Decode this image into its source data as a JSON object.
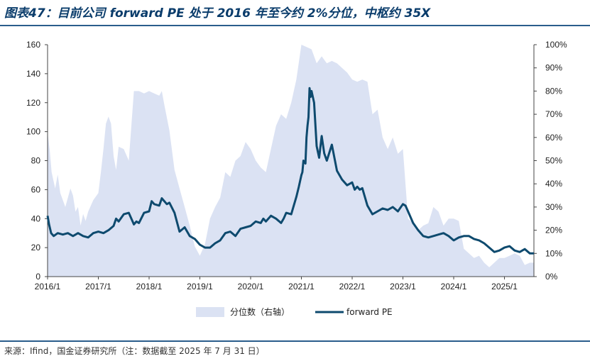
{
  "title": "图表47：目前公司 forward PE 处于 2016 年至今约 2%分位，中枢约 35X",
  "source": "来源：Ifind，国金证券研究所（注：数据截至 2025 年 7 月 31 日）",
  "colors": {
    "area": "#dbe2f3",
    "line": "#0e4a6e",
    "title": "#0a3c6b",
    "rule": "#2a5d8c"
  },
  "chart_data": {
    "type": "line",
    "x_ticks": [
      "2016/1",
      "2017/1",
      "2018/1",
      "2019/1",
      "2020/1",
      "2021/1",
      "2022/1",
      "2023/1",
      "2024/1",
      "2025/1"
    ],
    "y_left_ticks": [
      "0",
      "20",
      "40",
      "60",
      "80",
      "100",
      "120",
      "140",
      "160"
    ],
    "y_right_ticks": [
      "0%",
      "10%",
      "20%",
      "30%",
      "40%",
      "50%",
      "60%",
      "70%",
      "80%",
      "90%",
      "100%"
    ],
    "ylim_left": [
      0,
      160
    ],
    "ylim_right": [
      0,
      1
    ],
    "xlim": [
      2016.0,
      2025.58
    ],
    "grid": false,
    "legend_position": "bottom",
    "series": [
      {
        "name": "分位数（右轴）",
        "type": "area",
        "axis": "right",
        "x": [
          2016.0,
          2016.04,
          2016.08,
          2016.15,
          2016.2,
          2016.25,
          2016.3,
          2016.35,
          2016.4,
          2016.45,
          2016.5,
          2016.55,
          2016.6,
          2016.65,
          2016.7,
          2016.75,
          2016.8,
          2016.9,
          2017.0,
          2017.05,
          2017.1,
          2017.15,
          2017.2,
          2017.25,
          2017.3,
          2017.35,
          2017.4,
          2017.5,
          2017.6,
          2017.7,
          2017.8,
          2017.9,
          2018.0,
          2018.1,
          2018.2,
          2018.25,
          2018.3,
          2018.4,
          2018.5,
          2018.6,
          2018.7,
          2018.8,
          2018.9,
          2019.0,
          2019.1,
          2019.2,
          2019.3,
          2019.4,
          2019.5,
          2019.6,
          2019.7,
          2019.8,
          2019.9,
          2020.0,
          2020.1,
          2020.2,
          2020.3,
          2020.4,
          2020.5,
          2020.6,
          2020.7,
          2020.8,
          2020.9,
          2021.0,
          2021.1,
          2021.2,
          2021.3,
          2021.4,
          2021.5,
          2021.6,
          2021.7,
          2021.8,
          2021.9,
          2022.0,
          2022.1,
          2022.2,
          2022.3,
          2022.4,
          2022.5,
          2022.6,
          2022.7,
          2022.8,
          2022.9,
          2023.0,
          2023.1,
          2023.2,
          2023.3,
          2023.4,
          2023.5,
          2023.6,
          2023.7,
          2023.8,
          2023.9,
          2024.0,
          2024.1,
          2024.2,
          2024.3,
          2024.4,
          2024.5,
          2024.6,
          2024.7,
          2024.8,
          2024.9,
          2025.0,
          2025.1,
          2025.2,
          2025.3,
          2025.4,
          2025.5,
          2025.58
        ],
        "values": [
          0.62,
          0.55,
          0.45,
          0.38,
          0.44,
          0.36,
          0.33,
          0.3,
          0.34,
          0.38,
          0.35,
          0.28,
          0.3,
          0.22,
          0.27,
          0.24,
          0.28,
          0.33,
          0.36,
          0.45,
          0.55,
          0.66,
          0.69,
          0.66,
          0.52,
          0.46,
          0.56,
          0.55,
          0.5,
          0.8,
          0.8,
          0.79,
          0.8,
          0.79,
          0.78,
          0.8,
          0.74,
          0.63,
          0.46,
          0.38,
          0.3,
          0.22,
          0.13,
          0.09,
          0.14,
          0.25,
          0.3,
          0.34,
          0.45,
          0.43,
          0.5,
          0.52,
          0.58,
          0.55,
          0.5,
          0.47,
          0.45,
          0.55,
          0.65,
          0.7,
          0.68,
          0.75,
          0.85,
          1.0,
          0.99,
          0.98,
          0.92,
          0.95,
          0.92,
          0.93,
          0.92,
          0.9,
          0.88,
          0.85,
          0.84,
          0.85,
          0.84,
          0.7,
          0.72,
          0.6,
          0.55,
          0.6,
          0.53,
          0.55,
          0.25,
          0.23,
          0.2,
          0.22,
          0.23,
          0.3,
          0.28,
          0.22,
          0.25,
          0.25,
          0.24,
          0.12,
          0.1,
          0.08,
          0.09,
          0.06,
          0.04,
          0.06,
          0.08,
          0.08,
          0.09,
          0.1,
          0.09,
          0.05,
          0.06,
          0.06
        ]
      },
      {
        "name": "forward PE",
        "type": "line",
        "axis": "left",
        "x": [
          2016.0,
          2016.03,
          2016.07,
          2016.12,
          2016.2,
          2016.3,
          2016.4,
          2016.5,
          2016.6,
          2016.7,
          2016.8,
          2016.9,
          2017.0,
          2017.1,
          2017.2,
          2017.3,
          2017.35,
          2017.4,
          2017.5,
          2017.6,
          2017.7,
          2017.75,
          2017.8,
          2017.9,
          2018.0,
          2018.05,
          2018.1,
          2018.2,
          2018.25,
          2018.3,
          2018.35,
          2018.4,
          2018.5,
          2018.6,
          2018.7,
          2018.8,
          2018.9,
          2019.0,
          2019.1,
          2019.2,
          2019.3,
          2019.4,
          2019.5,
          2019.6,
          2019.7,
          2019.8,
          2019.9,
          2020.0,
          2020.1,
          2020.2,
          2020.25,
          2020.3,
          2020.4,
          2020.5,
          2020.6,
          2020.65,
          2020.7,
          2020.8,
          2020.9,
          2020.95,
          2021.0,
          2021.02,
          2021.04,
          2021.06,
          2021.08,
          2021.1,
          2021.12,
          2021.14,
          2021.16,
          2021.18,
          2021.2,
          2021.25,
          2021.3,
          2021.35,
          2021.4,
          2021.45,
          2021.5,
          2021.6,
          2021.7,
          2021.8,
          2021.9,
          2022.0,
          2022.05,
          2022.1,
          2022.15,
          2022.2,
          2022.3,
          2022.4,
          2022.5,
          2022.6,
          2022.7,
          2022.8,
          2022.9,
          2023.0,
          2023.05,
          2023.1,
          2023.2,
          2023.3,
          2023.4,
          2023.5,
          2023.6,
          2023.7,
          2023.8,
          2023.9,
          2024.0,
          2024.1,
          2024.2,
          2024.3,
          2024.4,
          2024.5,
          2024.6,
          2024.7,
          2024.8,
          2024.9,
          2025.0,
          2025.1,
          2025.2,
          2025.3,
          2025.4,
          2025.5,
          2025.58
        ],
        "values": [
          42,
          36,
          30,
          28,
          30,
          29,
          30,
          28,
          30,
          28,
          27,
          30,
          31,
          30,
          32,
          35,
          40,
          38,
          43,
          44,
          36,
          38,
          37,
          44,
          45,
          52,
          50,
          49,
          54,
          52,
          50,
          51,
          44,
          31,
          34,
          28,
          26,
          22,
          20,
          20,
          23,
          25,
          30,
          31,
          28,
          33,
          34,
          35,
          38,
          37,
          40,
          38,
          42,
          40,
          37,
          40,
          44,
          43,
          55,
          62,
          70,
          72,
          80,
          79,
          78,
          96,
          104,
          110,
          130,
          124,
          128,
          120,
          90,
          82,
          97,
          85,
          80,
          91,
          73,
          67,
          63,
          65,
          60,
          62,
          60,
          61,
          49,
          43,
          45,
          47,
          46,
          48,
          45,
          50,
          49,
          45,
          37,
          32,
          28,
          27,
          28,
          29,
          30,
          28,
          25,
          27,
          28,
          28,
          26,
          25,
          23,
          20,
          17,
          18,
          20,
          21,
          18,
          17,
          19,
          16,
          16
        ]
      }
    ]
  }
}
